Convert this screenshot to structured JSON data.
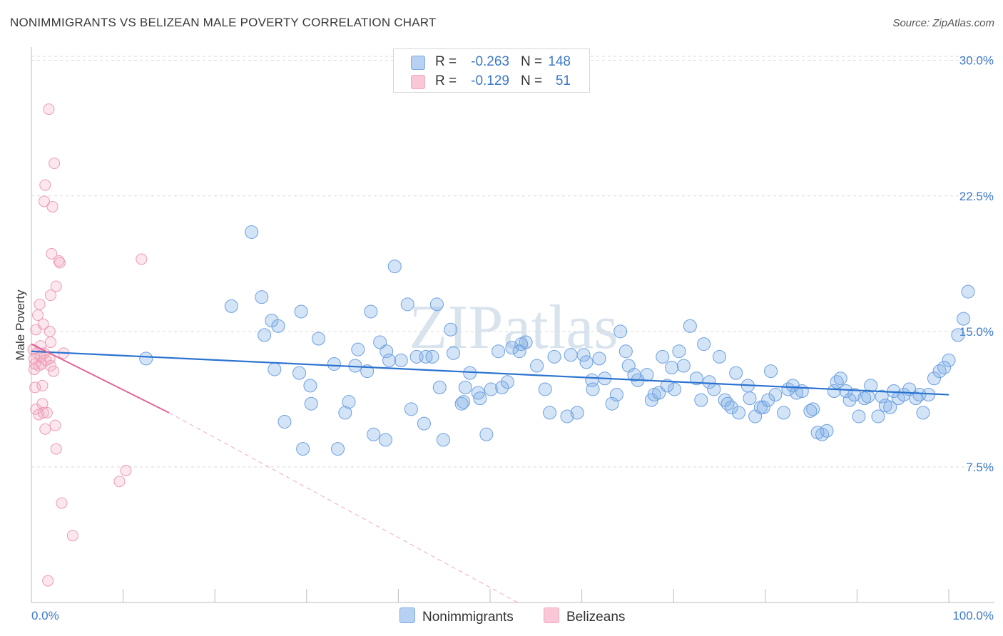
{
  "title": "NONIMMIGRANTS VS BELIZEAN MALE POVERTY CORRELATION CHART",
  "source": "Source: ZipAtlas.com",
  "watermark": "ZIPatlas",
  "stats": {
    "nonimmigrants": {
      "r_label": "R =",
      "r_value": "-0.263",
      "n_label": "N =",
      "n_value": "148"
    },
    "belizeans": {
      "r_label": "R =",
      "r_value": "-0.129",
      "n_label": "N =",
      "n_value": "51"
    }
  },
  "legend": {
    "nonimmigrants": "Nonimmigrants",
    "belizeans": "Belizeans"
  },
  "chart_data": {
    "type": "scatter",
    "title": "NONIMMIGRANTS VS BELIZEAN MALE POVERTY CORRELATION CHART",
    "xlabel": "",
    "ylabel": "Male Poverty",
    "xlim": [
      0,
      100
    ],
    "ylim": [
      0,
      30.5
    ],
    "x_tick_labels": [
      "0.0%",
      "100.0%"
    ],
    "y_ticks": [
      7.5,
      15.0,
      22.5,
      30.0
    ],
    "y_tick_labels": [
      "7.5%",
      "15.0%",
      "22.5%",
      "30.0%"
    ],
    "grid": "horizontal dashed",
    "colors": {
      "nonimmigrants": "#7aaae6",
      "nonimmigrants_line": "#2a72d0",
      "belizeans": "#f2a8c0",
      "belizeans_line": "#e0679a",
      "axis_text": "#3b78c8"
    },
    "series": [
      {
        "name": "Nonimmigrants",
        "regression": {
          "x": [
            0,
            100
          ],
          "y": [
            13.9,
            11.5
          ]
        },
        "points": [
          [
            12.5,
            13.5
          ],
          [
            21.8,
            16.4
          ],
          [
            24.0,
            20.5
          ],
          [
            25.1,
            16.9
          ],
          [
            25.4,
            14.8
          ],
          [
            26.2,
            15.6
          ],
          [
            26.5,
            12.9
          ],
          [
            26.9,
            15.3
          ],
          [
            27.6,
            10.0
          ],
          [
            29.2,
            12.7
          ],
          [
            29.4,
            16.1
          ],
          [
            29.6,
            8.5
          ],
          [
            30.4,
            12.0
          ],
          [
            30.5,
            11.0
          ],
          [
            31.3,
            14.6
          ],
          [
            33.0,
            13.2
          ],
          [
            33.4,
            8.5
          ],
          [
            34.2,
            10.5
          ],
          [
            34.6,
            11.1
          ],
          [
            35.3,
            13.1
          ],
          [
            35.6,
            14.0
          ],
          [
            36.6,
            12.8
          ],
          [
            37.0,
            16.1
          ],
          [
            37.3,
            9.3
          ],
          [
            38.0,
            14.4
          ],
          [
            38.6,
            9.0
          ],
          [
            38.7,
            13.9
          ],
          [
            39.0,
            13.4
          ],
          [
            39.6,
            18.6
          ],
          [
            40.3,
            13.4
          ],
          [
            41.0,
            16.5
          ],
          [
            41.4,
            10.7
          ],
          [
            42.0,
            13.6
          ],
          [
            42.8,
            9.9
          ],
          [
            43.0,
            13.6
          ],
          [
            43.7,
            13.6
          ],
          [
            44.2,
            16.5
          ],
          [
            44.5,
            11.9
          ],
          [
            44.9,
            9.0
          ],
          [
            45.7,
            15.1
          ],
          [
            46.0,
            13.8
          ],
          [
            46.9,
            11.0
          ],
          [
            47.1,
            11.1
          ],
          [
            47.3,
            11.9
          ],
          [
            47.8,
            12.7
          ],
          [
            48.7,
            11.6
          ],
          [
            48.9,
            11.3
          ],
          [
            49.6,
            9.3
          ],
          [
            50.1,
            11.8
          ],
          [
            50.9,
            13.9
          ],
          [
            51.3,
            11.9
          ],
          [
            51.9,
            12.2
          ],
          [
            52.4,
            14.1
          ],
          [
            53.2,
            13.9
          ],
          [
            53.4,
            14.3
          ],
          [
            53.9,
            14.4
          ],
          [
            55.1,
            13.1
          ],
          [
            56.0,
            11.8
          ],
          [
            56.5,
            10.5
          ],
          [
            57.0,
            13.6
          ],
          [
            58.4,
            10.3
          ],
          [
            58.8,
            13.7
          ],
          [
            59.5,
            10.5
          ],
          [
            60.2,
            13.7
          ],
          [
            60.5,
            13.3
          ],
          [
            61.1,
            12.3
          ],
          [
            61.2,
            11.8
          ],
          [
            61.9,
            13.5
          ],
          [
            62.5,
            12.4
          ],
          [
            63.3,
            11.0
          ],
          [
            63.8,
            11.5
          ],
          [
            64.2,
            15.0
          ],
          [
            64.8,
            13.9
          ],
          [
            65.1,
            13.1
          ],
          [
            65.7,
            12.6
          ],
          [
            66.1,
            12.3
          ],
          [
            67.1,
            12.6
          ],
          [
            67.6,
            11.2
          ],
          [
            67.9,
            11.5
          ],
          [
            68.4,
            11.6
          ],
          [
            68.8,
            13.6
          ],
          [
            69.3,
            12.0
          ],
          [
            69.8,
            13.0
          ],
          [
            70.1,
            11.8
          ],
          [
            70.6,
            13.9
          ],
          [
            71.1,
            13.1
          ],
          [
            71.8,
            15.3
          ],
          [
            72.5,
            12.4
          ],
          [
            73.0,
            11.2
          ],
          [
            73.3,
            14.3
          ],
          [
            73.9,
            12.2
          ],
          [
            74.4,
            11.8
          ],
          [
            75.0,
            13.6
          ],
          [
            75.6,
            11.2
          ],
          [
            75.9,
            11.0
          ],
          [
            76.3,
            10.8
          ],
          [
            76.8,
            12.7
          ],
          [
            77.1,
            10.5
          ],
          [
            78.1,
            12.0
          ],
          [
            78.3,
            11.3
          ],
          [
            78.9,
            10.3
          ],
          [
            79.5,
            10.8
          ],
          [
            79.8,
            10.8
          ],
          [
            80.3,
            11.2
          ],
          [
            80.6,
            12.8
          ],
          [
            81.1,
            11.5
          ],
          [
            82.0,
            10.5
          ],
          [
            82.5,
            11.8
          ],
          [
            83.0,
            12.0
          ],
          [
            83.4,
            11.6
          ],
          [
            84.0,
            11.7
          ],
          [
            84.9,
            10.6
          ],
          [
            85.2,
            10.7
          ],
          [
            85.7,
            9.4
          ],
          [
            86.2,
            9.3
          ],
          [
            86.7,
            9.5
          ],
          [
            87.5,
            11.7
          ],
          [
            87.8,
            12.2
          ],
          [
            88.2,
            12.4
          ],
          [
            88.8,
            11.7
          ],
          [
            89.2,
            11.2
          ],
          [
            89.7,
            11.5
          ],
          [
            90.2,
            10.3
          ],
          [
            90.8,
            11.3
          ],
          [
            91.2,
            11.4
          ],
          [
            91.5,
            12.0
          ],
          [
            92.3,
            10.3
          ],
          [
            92.7,
            11.4
          ],
          [
            93.1,
            10.9
          ],
          [
            93.6,
            10.8
          ],
          [
            94.0,
            11.7
          ],
          [
            94.5,
            11.3
          ],
          [
            95.1,
            11.5
          ],
          [
            95.7,
            11.8
          ],
          [
            96.4,
            11.3
          ],
          [
            96.8,
            11.5
          ],
          [
            97.2,
            10.5
          ],
          [
            97.8,
            11.5
          ],
          [
            98.4,
            12.4
          ],
          [
            99.0,
            12.8
          ],
          [
            99.5,
            13.0
          ],
          [
            100.0,
            13.4
          ],
          [
            101.0,
            14.8
          ],
          [
            101.6,
            15.7
          ],
          [
            102.1,
            17.2
          ]
        ]
      },
      {
        "name": "Belizeans",
        "regression": {
          "x": [
            0,
            15
          ],
          "y": [
            14.3,
            10.5
          ],
          "extension": {
            "x": [
              15,
              53
            ],
            "y": [
              10.5,
              0
            ]
          }
        },
        "points": [
          [
            0.2,
            14.0
          ],
          [
            0.3,
            13.5
          ],
          [
            0.3,
            12.9
          ],
          [
            0.4,
            13.2
          ],
          [
            0.4,
            11.9
          ],
          [
            0.5,
            15.1
          ],
          [
            0.5,
            10.7
          ],
          [
            0.6,
            13.8
          ],
          [
            0.7,
            15.9
          ],
          [
            0.8,
            13.1
          ],
          [
            0.8,
            10.4
          ],
          [
            0.9,
            16.5
          ],
          [
            1.0,
            14.2
          ],
          [
            1.0,
            13.6
          ],
          [
            1.1,
            13.2
          ],
          [
            1.2,
            12.0
          ],
          [
            1.2,
            11.0
          ],
          [
            1.3,
            15.4
          ],
          [
            1.3,
            10.5
          ],
          [
            1.4,
            22.2
          ],
          [
            1.4,
            13.8
          ],
          [
            1.5,
            23.1
          ],
          [
            1.5,
            9.6
          ],
          [
            1.6,
            13.4
          ],
          [
            1.7,
            10.5
          ],
          [
            1.8,
            1.2
          ],
          [
            1.9,
            27.3
          ],
          [
            2.0,
            13.5
          ],
          [
            2.0,
            15.0
          ],
          [
            2.1,
            17.0
          ],
          [
            2.1,
            14.4
          ],
          [
            2.1,
            13.1
          ],
          [
            2.2,
            19.3
          ],
          [
            2.3,
            21.9
          ],
          [
            2.4,
            12.8
          ],
          [
            2.5,
            24.3
          ],
          [
            2.6,
            9.8
          ],
          [
            2.7,
            17.5
          ],
          [
            2.7,
            8.5
          ],
          [
            3.0,
            18.9
          ],
          [
            3.1,
            18.8
          ],
          [
            3.3,
            5.5
          ],
          [
            3.5,
            13.8
          ],
          [
            4.5,
            3.7
          ],
          [
            9.6,
            6.7
          ],
          [
            10.3,
            7.3
          ],
          [
            12.0,
            19.0
          ]
        ]
      }
    ]
  }
}
